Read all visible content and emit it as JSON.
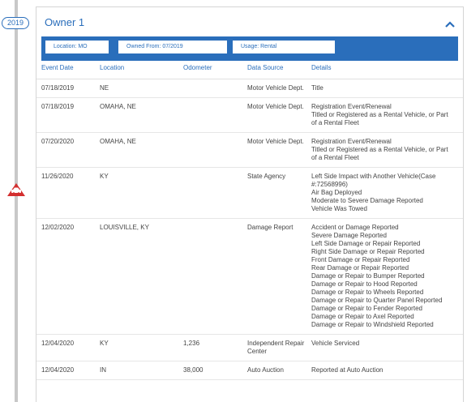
{
  "timeline": {
    "year": "2019"
  },
  "owner": {
    "title": "Owner 1",
    "location": "Location: MO",
    "owned_from": "Owned From: 07/2019",
    "usage": "Usage: Rental"
  },
  "columns": {
    "event_date": "Event Date",
    "location": "Location",
    "odometer": "Odometer",
    "data_source": "Data Source",
    "details": "Details"
  },
  "events": [
    {
      "date": "07/18/2019",
      "location": "NE",
      "odometer": "",
      "source": "Motor Vehicle Dept.",
      "details": [
        "Title"
      ]
    },
    {
      "date": "07/18/2019",
      "location": "OMAHA, NE",
      "odometer": "",
      "source": "Motor Vehicle Dept.",
      "details": [
        "Registration Event/Renewal",
        "Titled or Registered as a Rental Vehicle, or Part of a Rental Fleet"
      ]
    },
    {
      "date": "07/20/2020",
      "location": "OMAHA, NE",
      "odometer": "",
      "source": "Motor Vehicle Dept.",
      "details": [
        "Registration Event/Renewal",
        "Titled or Registered as a Rental Vehicle, or Part of a Rental Fleet"
      ]
    },
    {
      "date": "11/26/2020",
      "location": "KY",
      "odometer": "",
      "source": "State Agency",
      "details": [
        "Left Side Impact with Another Vehicle(Case #:72568996)",
        "Air Bag Deployed",
        "Moderate to Severe Damage Reported",
        "Vehicle Was Towed"
      ]
    },
    {
      "date": "12/02/2020",
      "location": "LOUISVILLE, KY",
      "odometer": "",
      "source": "Damage Report",
      "details": [
        "Accident or Damage Reported",
        "Severe Damage Reported",
        "Left Side Damage or Repair Reported",
        "Right Side Damage or Repair Reported",
        "Front Damage or Repair Reported",
        "Rear Damage or Repair Reported",
        "Damage or Repair to Bumper Reported",
        "Damage or Repair to Hood Reported",
        "Damage or Repair to Wheels Reported",
        "Damage or Repair to Quarter Panel Reported",
        "Damage or Repair to Fender Reported",
        "Damage or Repair to Axel Reported",
        "Damage or Repair to Windshield Reported"
      ]
    },
    {
      "date": "12/04/2020",
      "location": "KY",
      "odometer": "1,236",
      "source": "Independent Repair Center",
      "details": [
        "Vehicle Serviced"
      ]
    },
    {
      "date": "12/04/2020",
      "location": "IN",
      "odometer": "38,000",
      "source": "Auto Auction",
      "details": [
        "Reported at Auto Auction"
      ]
    }
  ],
  "colors": {
    "accent": "#2a6ebb",
    "damage": "#d32f2f",
    "timeline": "#c8c8c8"
  },
  "icons": {
    "collapse": "chevron-up-icon",
    "damage": "car-crash-icon"
  }
}
